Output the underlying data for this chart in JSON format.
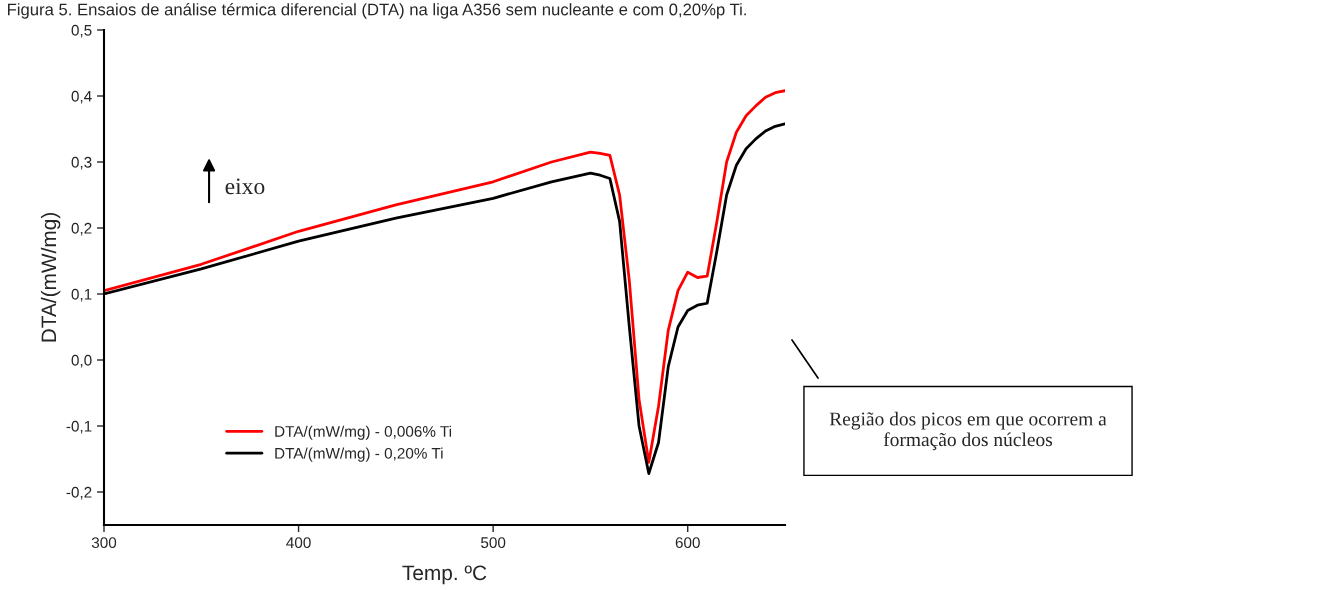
{
  "chart_data": {
    "type": "line",
    "title": "Figura 5. Ensaios de análise térmica diferencial (DTA) na liga A356 sem nucleante e com 0,20%p Ti.",
    "xlabel": "Temp. ºC",
    "ylabel": "DTA/(mW/mg)",
    "xlim": [
      300,
      650
    ],
    "xticks": [
      300,
      400,
      500,
      600
    ],
    "ylim": [
      -0.25,
      0.5
    ],
    "yticks": [
      {
        "value": -0.2,
        "label": "-0,2"
      },
      {
        "value": -0.1,
        "label": "-0,1"
      },
      {
        "value": 0.0,
        "label": "0,0"
      },
      {
        "value": 0.1,
        "label": "0,1"
      },
      {
        "value": 0.2,
        "label": "0,2"
      },
      {
        "value": 0.3,
        "label": "0,3"
      },
      {
        "value": 0.4,
        "label": "0,4"
      },
      {
        "value": 0.5,
        "label": "0,5"
      }
    ],
    "grid": false,
    "legend": "bottom left",
    "marker": "none",
    "line_style": "solid",
    "x": [
      300,
      350,
      400,
      450,
      500,
      530,
      550,
      555,
      560,
      565,
      570,
      575,
      580,
      585,
      590,
      595,
      600,
      605,
      610,
      615,
      620,
      625,
      630,
      635,
      640,
      645,
      650
    ],
    "series": [
      {
        "name": "DTA/(mW/mg) - 0,006% Ti",
        "color": "#ff0000",
        "values": [
          0.105,
          0.145,
          0.195,
          0.235,
          0.27,
          0.3,
          0.315,
          0.313,
          0.31,
          0.25,
          0.12,
          -0.06,
          -0.155,
          -0.07,
          0.045,
          0.105,
          0.133,
          0.125,
          0.127,
          0.21,
          0.3,
          0.345,
          0.37,
          0.385,
          0.398,
          0.405,
          0.408
        ]
      },
      {
        "name": "DTA/(mW/mg) - 0,20% Ti",
        "color": "#000000",
        "values": [
          0.1,
          0.138,
          0.18,
          0.215,
          0.245,
          0.27,
          0.283,
          0.28,
          0.275,
          0.21,
          0.05,
          -0.1,
          -0.172,
          -0.125,
          -0.01,
          0.05,
          0.075,
          0.083,
          0.086,
          0.165,
          0.25,
          0.295,
          0.32,
          0.335,
          0.347,
          0.354,
          0.358
        ]
      }
    ],
    "annotations": [
      "eixo",
      "Região dos picos em que ocorrem a formação dos núcleos"
    ]
  }
}
